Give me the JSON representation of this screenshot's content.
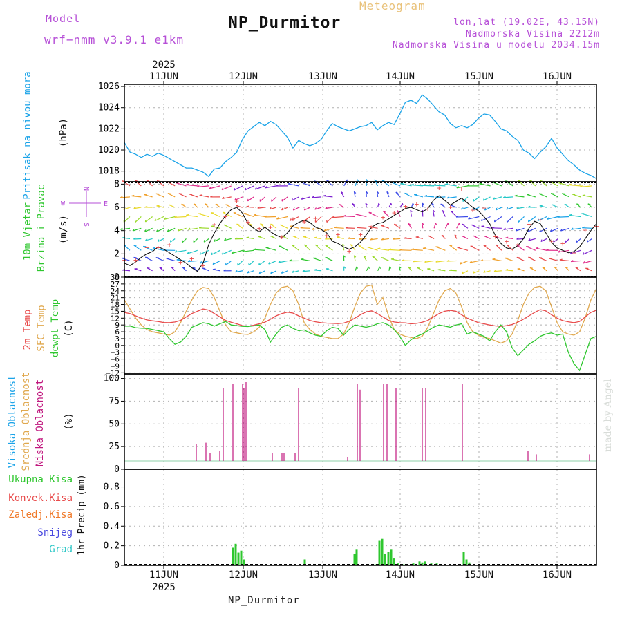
{
  "header": {
    "model_label": "Model",
    "model_name": "wrf−nmm_v3.9.1  e1km",
    "title": "NP_Durmitor",
    "product": "Meteogram",
    "coords": "lon,lat (19.02E, 43.15N)",
    "elevation": "Nadmorska Visina 2212m",
    "model_elevation": "Nadmorska Visina u modelu 2034.15m"
  },
  "footer": {
    "station": "NP_Durmitor"
  },
  "credit": "made by Angel",
  "colors": {
    "pressure": "#1aa3e8",
    "temp2m": "#e84a4a",
    "sfc": "#e0a84e",
    "dewpt": "#2fc72f",
    "high_cloud": "#1aa3e8",
    "mid_cloud": "#e0a84e",
    "low_cloud": "#c0177e",
    "total_precip": "#2fc72f",
    "conv_precip": "#e84a4a",
    "frozen": "#f07a2a",
    "snow": "#4a4ae0",
    "grad": "#2fc7c7"
  },
  "chart_data": [
    {
      "type": "line",
      "panel": "pressure",
      "ylabels": [
        "Pritisak na nivou mora",
        "(hPa)"
      ],
      "x_ticks": [
        "11JUN",
        "12JUN",
        "13JUN",
        "14JUN",
        "15JUN",
        "16JUN"
      ],
      "year": "2025",
      "ylim": [
        1017,
        1026.2
      ],
      "y_ticks": [
        "1018",
        "1020",
        "1022",
        "1024",
        "1026"
      ],
      "series": [
        {
          "values": [
            1020.7,
            1019.8,
            1019.6,
            1019.3,
            1019.6,
            1019.4,
            1019.7,
            1019.5,
            1019.2,
            1018.9,
            1018.6,
            1018.3,
            1018.3,
            1018.1,
            1017.9,
            1017.5,
            1018.2,
            1018.3,
            1018.9,
            1019.3,
            1019.8,
            1021.0,
            1021.8,
            1022.2,
            1022.6,
            1022.3,
            1022.7,
            1022.4,
            1021.8,
            1021.2,
            1020.2,
            1020.9,
            1020.6,
            1020.4,
            1020.6,
            1021.0,
            1021.8,
            1022.5,
            1022.2,
            1022.0,
            1021.8,
            1022.0,
            1022.2,
            1022.3,
            1022.6,
            1021.9,
            1022.3,
            1022.6,
            1022.4,
            1023.4,
            1024.5,
            1024.7,
            1024.4,
            1025.2,
            1024.8,
            1024.2,
            1023.6,
            1023.3,
            1022.5,
            1022.1,
            1022.3,
            1022.1,
            1022.4,
            1023.0,
            1023.4,
            1023.3,
            1022.7,
            1022.0,
            1021.8,
            1021.3,
            1020.9,
            1020.0,
            1019.7,
            1019.2,
            1019.8,
            1020.3,
            1021.1,
            1020.2,
            1019.6,
            1019.0,
            1018.6,
            1018.1,
            1017.8,
            1017.6,
            1017.3
          ]
        }
      ]
    },
    {
      "type": "line",
      "panel": "wind",
      "ylabels": [
        "10m Vjetar",
        "Brzina i Pravac",
        "(m/s)"
      ],
      "compass": {
        "n": "N",
        "s": "S",
        "e": "E",
        "w": "W"
      },
      "ylim": [
        0,
        8.2
      ],
      "y_ticks": [
        "0",
        "2",
        "4",
        "6",
        "8"
      ],
      "series": [
        {
          "values": [
            1.2,
            1.0,
            1.3,
            1.7,
            2.0,
            2.2,
            2.6,
            2.4,
            2.1,
            1.8,
            1.5,
            1.2,
            0.8,
            0.5,
            1.2,
            2.8,
            3.8,
            4.6,
            5.3,
            5.8,
            6.0,
            5.5,
            4.6,
            4.2,
            3.9,
            4.3,
            3.9,
            3.6,
            3.4,
            3.8,
            4.4,
            4.7,
            4.9,
            4.7,
            4.3,
            4.1,
            3.8,
            3.1,
            2.9,
            2.6,
            2.4,
            2.6,
            3.0,
            3.6,
            4.3,
            4.6,
            4.7,
            5.0,
            5.3,
            5.6,
            5.9,
            6.0,
            5.8,
            5.6,
            5.9,
            6.6,
            7.0,
            6.6,
            6.2,
            6.5,
            6.8,
            6.4,
            6.0,
            5.7,
            5.2,
            4.6,
            3.6,
            2.9,
            2.5,
            2.4,
            2.7,
            3.3,
            4.2,
            4.8,
            4.6,
            3.8,
            3.0,
            2.5,
            2.3,
            2.1,
            2.2,
            2.6,
            3.3,
            4.0,
            4.6
          ]
        }
      ]
    },
    {
      "type": "line",
      "panel": "temperature",
      "ylabels": [
        "2m Temp",
        "SFC Temp",
        "dewpt Temp",
        "(C)"
      ],
      "ylim": [
        -12.5,
        30
      ],
      "y_ticks": [
        "30",
        "27",
        "24",
        "21",
        "18",
        "15",
        "12",
        "9",
        "6",
        "3",
        "0",
        "−3",
        "−6",
        "−9",
        "−12"
      ],
      "series": [
        {
          "name": "2m Temp",
          "values": [
            14.5,
            14.0,
            13.0,
            12.0,
            11.2,
            10.8,
            10.5,
            10.1,
            10.0,
            10.3,
            11.0,
            12.5,
            14.0,
            15.0,
            16.0,
            15.5,
            14.0,
            12.5,
            11.0,
            10.2,
            9.5,
            8.7,
            8.4,
            8.9,
            9.5,
            10.2,
            11.5,
            13.0,
            14.0,
            14.6,
            14.2,
            13.0,
            12.0,
            11.0,
            10.4,
            10.0,
            9.8,
            9.7,
            9.6,
            9.8,
            10.6,
            12.0,
            13.5,
            14.7,
            15.2,
            14.0,
            12.5,
            11.0,
            10.3,
            10.0,
            9.9,
            9.5,
            9.7,
            10.2,
            11.0,
            12.5,
            14.0,
            15.0,
            15.4,
            15.0,
            13.5,
            12.0,
            11.0,
            10.0,
            9.5,
            9.0,
            8.6,
            8.4,
            8.7,
            9.2,
            10.2,
            11.5,
            13.0,
            14.5,
            15.7,
            15.2,
            13.5,
            12.0,
            10.9,
            10.4,
            10.0,
            10.5,
            12.5,
            14.5,
            15.5
          ]
        },
        {
          "name": "SFC Temp",
          "values": [
            20.0,
            16.0,
            12.0,
            9.0,
            7.0,
            6.0,
            5.5,
            5.0,
            4.5,
            6.0,
            10.0,
            15.0,
            20.0,
            24.0,
            25.5,
            25.0,
            21.0,
            15.0,
            9.0,
            6.0,
            5.5,
            5.0,
            4.8,
            6.0,
            8.0,
            12.0,
            18.0,
            23.0,
            25.5,
            26.0,
            24.0,
            18.0,
            10.0,
            7.0,
            5.0,
            4.0,
            3.5,
            3.0,
            3.0,
            5.0,
            10.0,
            17.0,
            23.0,
            26.0,
            26.5,
            18.0,
            21.0,
            13.0,
            7.0,
            5.0,
            4.0,
            3.5,
            3.0,
            4.0,
            8.0,
            14.0,
            20.0,
            24.0,
            25.0,
            23.0,
            17.0,
            10.0,
            6.0,
            4.5,
            3.5,
            3.0,
            2.0,
            1.0,
            2.0,
            5.0,
            11.0,
            18.0,
            23.0,
            25.5,
            26.0,
            24.0,
            17.0,
            10.0,
            6.0,
            5.0,
            4.5,
            6.0,
            12.0,
            20.0,
            25.0
          ]
        },
        {
          "name": "dewpt Temp",
          "values": [
            8.5,
            8.5,
            7.8,
            7.6,
            7.5,
            7.0,
            6.5,
            6.0,
            3.0,
            0.5,
            1.5,
            4.0,
            8.0,
            9.0,
            10.0,
            9.5,
            8.5,
            9.5,
            10.5,
            9.0,
            8.7,
            8.4,
            8.3,
            8.6,
            9.0,
            7.0,
            1.5,
            5.0,
            8.0,
            9.0,
            7.5,
            6.5,
            6.8,
            5.5,
            4.5,
            4.0,
            6.5,
            8.0,
            7.5,
            4.5,
            7.0,
            9.0,
            8.5,
            8.0,
            8.5,
            9.5,
            10.0,
            9.0,
            7.0,
            4.0,
            0.0,
            2.5,
            4.0,
            5.0,
            6.5,
            8.0,
            9.0,
            8.5,
            8.0,
            9.0,
            9.5,
            5.0,
            6.0,
            5.0,
            4.0,
            2.0,
            6.0,
            9.0,
            6.0,
            -1.0,
            -4.5,
            -2.0,
            0.5,
            2.0,
            4.0,
            5.0,
            5.5,
            4.5,
            5.0,
            -3.0,
            -8.0,
            -11.0,
            -4.0,
            3.0,
            4.0
          ]
        }
      ]
    },
    {
      "type": "bar",
      "panel": "cloud",
      "ylabels": [
        "Visoka Oblacnost",
        "Srednja Oblacnost",
        "Niska Oblacnost",
        "(%)"
      ],
      "ylim": [
        0,
        105
      ],
      "y_ticks": [
        "0",
        "25",
        "50",
        "75",
        "100"
      ],
      "series": [
        {
          "name": "Niska Oblacnost",
          "values": [
            0,
            0,
            0,
            0,
            0,
            0,
            0,
            0,
            0,
            0,
            0,
            0,
            0,
            0,
            0,
            0,
            0,
            0,
            0,
            0,
            0,
            0,
            0,
            0,
            0,
            0,
            0,
            0,
            0,
            0,
            0,
            0,
            0,
            0,
            0,
            0,
            0,
            0,
            0,
            0,
            0,
            0,
            0,
            0,
            0,
            0,
            0,
            0,
            0,
            0,
            0,
            0,
            0,
            0,
            0,
            0,
            0,
            0,
            0,
            0,
            0,
            0,
            0,
            0,
            0,
            0,
            0,
            0,
            0,
            0,
            0,
            0,
            0,
            0,
            0,
            0,
            0,
            0,
            0,
            0,
            0,
            0,
            0,
            0,
            0
          ]
        }
      ],
      "bars": [
        [
          284,
          20
        ],
        [
          298,
          22
        ],
        [
          304,
          10
        ],
        [
          318,
          12
        ],
        [
          323,
          88
        ],
        [
          337,
          93
        ],
        [
          351,
          93
        ],
        [
          353,
          88
        ],
        [
          356,
          95
        ],
        [
          394,
          10
        ],
        [
          408,
          10
        ],
        [
          411,
          10
        ],
        [
          427,
          10
        ],
        [
          432,
          88
        ],
        [
          503,
          5
        ],
        [
          517,
          93
        ],
        [
          521,
          86
        ],
        [
          555,
          93
        ],
        [
          560,
          93
        ],
        [
          573,
          88
        ],
        [
          611,
          88
        ],
        [
          616,
          88
        ],
        [
          669,
          93
        ],
        [
          764,
          12
        ],
        [
          776,
          8
        ],
        [
          853,
          8
        ]
      ]
    },
    {
      "type": "bar",
      "panel": "precip",
      "legend": [
        "Ukupna Kisa",
        "Konvek.Kisa",
        "Zaledj.Kisa",
        "Snijeg",
        "Grad"
      ],
      "ylabels": [
        "1hr Precip (mm)"
      ],
      "ylim": [
        0,
        0.98
      ],
      "y_ticks": [
        "0",
        "0.2",
        "0.4",
        "0.6",
        "0.8"
      ],
      "x_ticks": [
        "11JUN",
        "12JUN",
        "13JUN",
        "14JUN",
        "15JUN",
        "16JUN"
      ],
      "year": "2025",
      "bars": [
        [
          337,
          0.18
        ],
        [
          341,
          0.22
        ],
        [
          345,
          0.13
        ],
        [
          349,
          0.15
        ],
        [
          353,
          0.06
        ],
        [
          441,
          0.06
        ],
        [
          513,
          0.12
        ],
        [
          516,
          0.16
        ],
        [
          543,
          0.01
        ],
        [
          549,
          0.25
        ],
        [
          553,
          0.27
        ],
        [
          557,
          0.12
        ],
        [
          562,
          0.14
        ],
        [
          566,
          0.16
        ],
        [
          570,
          0.07
        ],
        [
          576,
          0.02
        ],
        [
          584,
          0.01
        ],
        [
          589,
          0.01
        ],
        [
          598,
          0.02
        ],
        [
          607,
          0.04
        ],
        [
          611,
          0.03
        ],
        [
          615,
          0.04
        ],
        [
          624,
          0.02
        ],
        [
          632,
          0.02
        ],
        [
          671,
          0.14
        ],
        [
          675,
          0.06
        ],
        [
          679,
          0.03
        ]
      ]
    }
  ]
}
